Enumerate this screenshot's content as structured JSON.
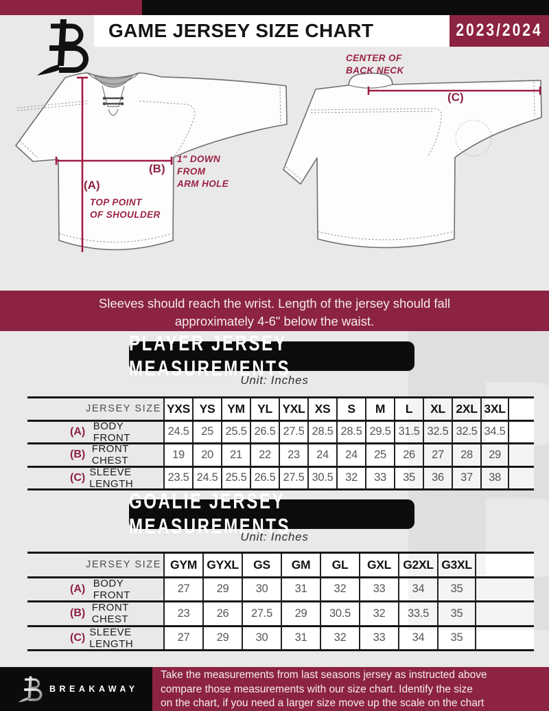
{
  "header": {
    "title": "GAME JERSEY SIZE CHART",
    "season": "2023/2024"
  },
  "logo": {
    "brand": "BREAKAWAY",
    "monogram_letter": "B"
  },
  "diagram": {
    "front": {
      "a_key": "(A)",
      "a_caption": "TOP POINT\nOF SHOULDER",
      "b_key": "(B)",
      "b_caption": "1\" DOWN\nFROM\nARM HOLE"
    },
    "back": {
      "c_key": "(C)",
      "c_caption": "CENTER OF\nBACK NECK"
    }
  },
  "note": "Sleeves should reach the wrist. Length of the jersey should fall\napproximately 4-6\" below the waist.",
  "player_section": {
    "title": "PLAYER JERSEY MEASUREMENTS",
    "unit": "Unit: Inches",
    "table": {
      "corner": "JERSEY SIZE",
      "sizes": [
        "YXS",
        "YS",
        "YM",
        "YL",
        "YXL",
        "XS",
        "S",
        "M",
        "L",
        "XL",
        "2XL",
        "3XL"
      ],
      "rows": [
        {
          "key": "(A)",
          "label": "BODY FRONT",
          "values": [
            "24.5",
            "25",
            "25.5",
            "26.5",
            "27.5",
            "28.5",
            "28.5",
            "29.5",
            "31.5",
            "32.5",
            "32.5",
            "34.5"
          ]
        },
        {
          "key": "(B)",
          "label": "FRONT CHEST",
          "values": [
            "19",
            "20",
            "21",
            "22",
            "23",
            "24",
            "24",
            "25",
            "26",
            "27",
            "28",
            "29"
          ]
        },
        {
          "key": "(C)",
          "label": "SLEEVE LENGTH",
          "values": [
            "23.5",
            "24.5",
            "25.5",
            "26.5",
            "27.5",
            "30.5",
            "32",
            "33",
            "35",
            "36",
            "37",
            "38"
          ]
        }
      ]
    }
  },
  "goalie_section": {
    "title": "GOALIE JERSEY MEASUREMENTS",
    "unit": "Unit: Inches",
    "table": {
      "corner": "JERSEY SIZE",
      "sizes": [
        "GYM",
        "GYXL",
        "GS",
        "GM",
        "GL",
        "GXL",
        "G2XL",
        "G3XL"
      ],
      "rows": [
        {
          "key": "(A)",
          "label": "BODY FRONT",
          "values": [
            "27",
            "29",
            "30",
            "31",
            "32",
            "33",
            "34",
            "35"
          ]
        },
        {
          "key": "(B)",
          "label": "FRONT CHEST",
          "values": [
            "23",
            "26",
            "27.5",
            "29",
            "30.5",
            "32",
            "33.5",
            "35"
          ]
        },
        {
          "key": "(C)",
          "label": "SLEEVE LENGTH",
          "values": [
            "27",
            "29",
            "30",
            "31",
            "32",
            "33",
            "34",
            "35"
          ]
        }
      ]
    }
  },
  "watermark": "B",
  "footer": {
    "brand": "BREAKAWAY",
    "lines": [
      "Take the measurements from last seasons jersey as instructed above",
      "compare those measurements  with our size chart. Identify the size",
      "on the chart, if you need a larger size move up the scale on the chart"
    ]
  }
}
